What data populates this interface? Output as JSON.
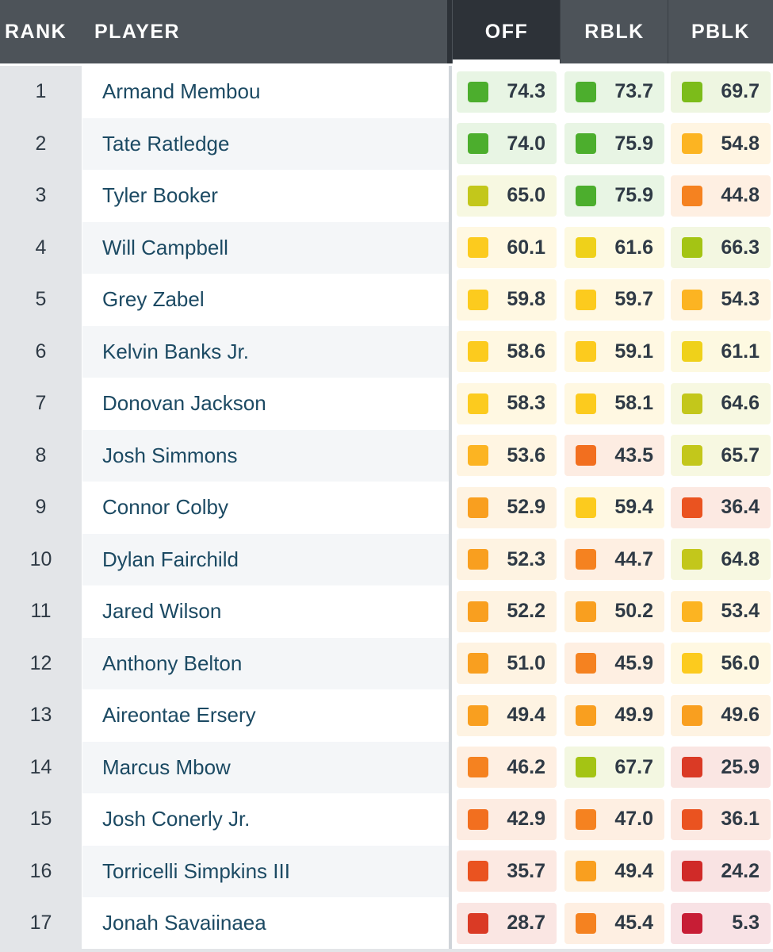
{
  "header": {
    "rank": "RANK",
    "player": "PLAYER",
    "off": "OFF",
    "rblk": "RBLK",
    "pblk": "PBLK"
  },
  "rows": [
    {
      "rank": "1",
      "player": "Armand Membou",
      "off": "74.3",
      "rblk": "73.7",
      "pblk": "69.7"
    },
    {
      "rank": "2",
      "player": "Tate Ratledge",
      "off": "74.0",
      "rblk": "75.9",
      "pblk": "54.8"
    },
    {
      "rank": "3",
      "player": "Tyler Booker",
      "off": "65.0",
      "rblk": "75.9",
      "pblk": "44.8"
    },
    {
      "rank": "4",
      "player": "Will Campbell",
      "off": "60.1",
      "rblk": "61.6",
      "pblk": "66.3"
    },
    {
      "rank": "5",
      "player": "Grey Zabel",
      "off": "59.8",
      "rblk": "59.7",
      "pblk": "54.3"
    },
    {
      "rank": "6",
      "player": "Kelvin Banks Jr.",
      "off": "58.6",
      "rblk": "59.1",
      "pblk": "61.1"
    },
    {
      "rank": "7",
      "player": "Donovan Jackson",
      "off": "58.3",
      "rblk": "58.1",
      "pblk": "64.6"
    },
    {
      "rank": "8",
      "player": "Josh Simmons",
      "off": "53.6",
      "rblk": "43.5",
      "pblk": "65.7"
    },
    {
      "rank": "9",
      "player": "Connor Colby",
      "off": "52.9",
      "rblk": "59.4",
      "pblk": "36.4"
    },
    {
      "rank": "10",
      "player": "Dylan Fairchild",
      "off": "52.3",
      "rblk": "44.7",
      "pblk": "64.8"
    },
    {
      "rank": "11",
      "player": "Jared Wilson",
      "off": "52.2",
      "rblk": "50.2",
      "pblk": "53.4"
    },
    {
      "rank": "12",
      "player": "Anthony Belton",
      "off": "51.0",
      "rblk": "45.9",
      "pblk": "56.0"
    },
    {
      "rank": "13",
      "player": "Aireontae Ersery",
      "off": "49.4",
      "rblk": "49.9",
      "pblk": "49.6"
    },
    {
      "rank": "14",
      "player": "Marcus Mbow",
      "off": "46.2",
      "rblk": "67.7",
      "pblk": "25.9"
    },
    {
      "rank": "15",
      "player": "Josh Conerly Jr.",
      "off": "42.9",
      "rblk": "47.0",
      "pblk": "36.1"
    },
    {
      "rank": "16",
      "player": "Torricelli Simpkins III",
      "off": "35.7",
      "rblk": "49.4",
      "pblk": "24.2"
    },
    {
      "rank": "17",
      "player": "Jonah Savaiinaea",
      "off": "28.7",
      "rblk": "45.4",
      "pblk": "5.3"
    }
  ]
}
